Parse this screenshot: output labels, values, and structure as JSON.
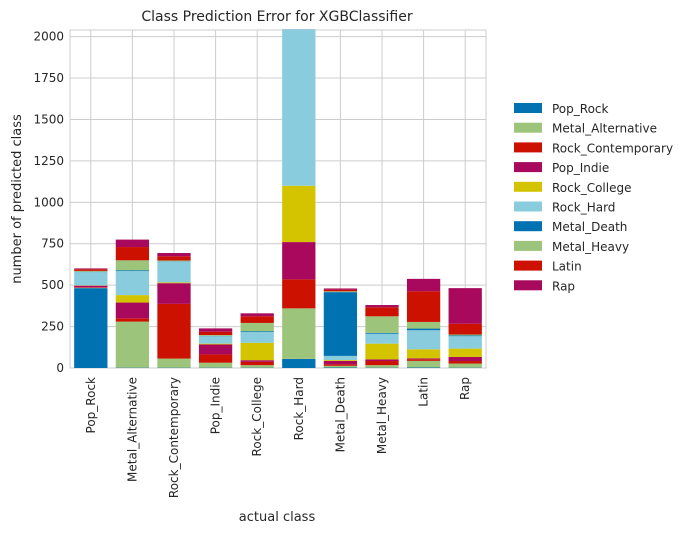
{
  "chart_data": {
    "type": "bar",
    "stacked": true,
    "title": "Class Prediction Error for XGBClassifier",
    "xlabel": "actual class",
    "ylabel": "number of predicted class",
    "ylim": [
      0,
      2040
    ],
    "yticks": [
      0,
      250,
      500,
      750,
      1000,
      1250,
      1500,
      1750,
      2000
    ],
    "grid": true,
    "legend_position": "right",
    "categories": [
      "Pop_Rock",
      "Metal_Alternative",
      "Rock_Contemporary",
      "Pop_Indie",
      "Rock_College",
      "Rock_Hard",
      "Metal_Death",
      "Metal_Heavy",
      "Latin",
      "Rap"
    ],
    "series": [
      {
        "name": "Pop_Rock",
        "color": "#0072B2",
        "values": [
          482,
          2,
          2,
          2,
          2,
          55,
          3,
          2,
          3,
          2
        ]
      },
      {
        "name": "Metal_Alternative",
        "color": "#9DC47B",
        "values": [
          2,
          278,
          55,
          30,
          15,
          305,
          10,
          15,
          40,
          25
        ]
      },
      {
        "name": "Rock_Contemporary",
        "color": "#CC1100",
        "values": [
          3,
          20,
          330,
          50,
          20,
          175,
          10,
          25,
          10,
          15
        ]
      },
      {
        "name": "Pop_Indie",
        "color": "#A8095C",
        "values": [
          10,
          95,
          125,
          60,
          10,
          225,
          20,
          10,
          5,
          25
        ]
      },
      {
        "name": "Rock_College",
        "color": "#D4C400",
        "values": [
          2,
          45,
          5,
          5,
          105,
          340,
          5,
          95,
          55,
          50
        ]
      },
      {
        "name": "Rock_Hard",
        "color": "#88CCDD",
        "values": [
          80,
          145,
          125,
          45,
          65,
          940,
          25,
          60,
          115,
          75
        ]
      },
      {
        "name": "Metal_Death",
        "color": "#0072B2",
        "values": [
          2,
          5,
          2,
          2,
          5,
          2,
          385,
          5,
          10,
          5
        ]
      },
      {
        "name": "Metal_Heavy",
        "color": "#9DC47B",
        "values": [
          5,
          60,
          5,
          5,
          50,
          0,
          5,
          100,
          40,
          5
        ]
      },
      {
        "name": "Latin",
        "color": "#CC1100",
        "values": [
          10,
          80,
          25,
          20,
          40,
          0,
          10,
          55,
          185,
          65
        ]
      },
      {
        "name": "Rap",
        "color": "#A8095C",
        "values": [
          5,
          45,
          20,
          20,
          18,
          0,
          7,
          13,
          75,
          215
        ]
      }
    ]
  }
}
